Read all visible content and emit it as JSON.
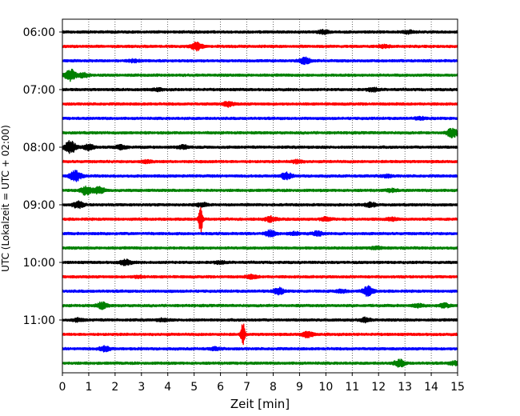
{
  "chart_data": {
    "type": "line",
    "title": "",
    "xlabel": "Zeit  [min]",
    "ylabel": "UTC (Lokalzeit = UTC + 02:00)",
    "xlim": [
      0,
      15
    ],
    "x_ticks": [
      "0",
      "1",
      "2",
      "3",
      "4",
      "5",
      "6",
      "7",
      "8",
      "9",
      "10",
      "11",
      "12",
      "13",
      "14",
      "15"
    ],
    "y_tick_labels": [
      "06:00",
      "07:00",
      "08:00",
      "09:00",
      "10:00",
      "11:00"
    ],
    "grid": "vertical dotted lines at each minute",
    "trace_colors_cycle": [
      "#000000",
      "#ff0000",
      "#0000ff",
      "#008000"
    ],
    "traces": [
      {
        "start": "06:00",
        "color": "#000000",
        "events": [
          {
            "t": 9.9,
            "amp": 0.55
          },
          {
            "t": 13.1,
            "amp": 0.4
          }
        ]
      },
      {
        "start": "06:15",
        "color": "#ff0000",
        "events": [
          {
            "t": 5.1,
            "amp": 1.1
          },
          {
            "t": 12.2,
            "amp": 0.35
          }
        ]
      },
      {
        "start": "06:30",
        "color": "#0000ff",
        "events": [
          {
            "t": 9.2,
            "amp": 0.9
          },
          {
            "t": 2.7,
            "amp": 0.35
          }
        ]
      },
      {
        "start": "06:45",
        "color": "#008000",
        "events": [
          {
            "t": 0.3,
            "amp": 1.7
          },
          {
            "t": 0.8,
            "amp": 0.6
          }
        ]
      },
      {
        "start": "07:00",
        "color": "#000000",
        "events": [
          {
            "t": 11.8,
            "amp": 0.5
          },
          {
            "t": 3.6,
            "amp": 0.3
          }
        ]
      },
      {
        "start": "07:15",
        "color": "#ff0000",
        "events": [
          {
            "t": 6.3,
            "amp": 0.65
          }
        ]
      },
      {
        "start": "07:30",
        "color": "#0000ff",
        "events": [
          {
            "t": 13.6,
            "amp": 0.35
          }
        ]
      },
      {
        "start": "07:45",
        "color": "#008000",
        "events": [
          {
            "t": 14.8,
            "amp": 1.3
          }
        ]
      },
      {
        "start": "08:00",
        "color": "#000000",
        "events": [
          {
            "t": 0.3,
            "amp": 1.9
          },
          {
            "t": 1.0,
            "amp": 0.9
          },
          {
            "t": 2.2,
            "amp": 0.7
          },
          {
            "t": 4.6,
            "amp": 0.5
          }
        ]
      },
      {
        "start": "08:15",
        "color": "#ff0000",
        "events": [
          {
            "t": 8.9,
            "amp": 0.45
          },
          {
            "t": 3.2,
            "amp": 0.3
          }
        ]
      },
      {
        "start": "08:30",
        "color": "#0000ff",
        "events": [
          {
            "t": 0.5,
            "amp": 1.6
          },
          {
            "t": 8.5,
            "amp": 0.95
          },
          {
            "t": 12.3,
            "amp": 0.35
          }
        ]
      },
      {
        "start": "08:45",
        "color": "#008000",
        "events": [
          {
            "t": 0.9,
            "amp": 1.3
          },
          {
            "t": 1.4,
            "amp": 1.0
          },
          {
            "t": 12.5,
            "amp": 0.4
          }
        ]
      },
      {
        "start": "09:00",
        "color": "#000000",
        "events": [
          {
            "t": 0.6,
            "amp": 0.9
          },
          {
            "t": 11.7,
            "amp": 0.6
          },
          {
            "t": 5.3,
            "amp": 0.5
          }
        ]
      },
      {
        "start": "09:15",
        "color": "#ff0000",
        "events": [
          {
            "t": 5.25,
            "amp": 4.6
          },
          {
            "t": 7.9,
            "amp": 0.7
          },
          {
            "t": 10.0,
            "amp": 0.5
          },
          {
            "t": 12.5,
            "amp": 0.4
          }
        ]
      },
      {
        "start": "09:30",
        "color": "#0000ff",
        "events": [
          {
            "t": 7.9,
            "amp": 0.9
          },
          {
            "t": 9.7,
            "amp": 0.6
          },
          {
            "t": 8.8,
            "amp": 0.4
          }
        ]
      },
      {
        "start": "09:45",
        "color": "#008000",
        "events": [
          {
            "t": 11.9,
            "amp": 0.35
          }
        ]
      },
      {
        "start": "10:00",
        "color": "#000000",
        "events": [
          {
            "t": 2.4,
            "amp": 0.8
          },
          {
            "t": 6.0,
            "amp": 0.35
          }
        ]
      },
      {
        "start": "10:15",
        "color": "#ff0000",
        "events": [
          {
            "t": 7.2,
            "amp": 0.5
          },
          {
            "t": 2.9,
            "amp": 0.3
          }
        ]
      },
      {
        "start": "10:30",
        "color": "#0000ff",
        "events": [
          {
            "t": 8.2,
            "amp": 0.9
          },
          {
            "t": 11.6,
            "amp": 1.4
          },
          {
            "t": 10.6,
            "amp": 0.4
          }
        ]
      },
      {
        "start": "10:45",
        "color": "#008000",
        "events": [
          {
            "t": 1.5,
            "amp": 0.9
          },
          {
            "t": 14.5,
            "amp": 0.55
          },
          {
            "t": 13.5,
            "amp": 0.4
          }
        ]
      },
      {
        "start": "11:00",
        "color": "#000000",
        "events": [
          {
            "t": 11.5,
            "amp": 0.6
          },
          {
            "t": 0.6,
            "amp": 0.4
          },
          {
            "t": 3.8,
            "amp": 0.35
          }
        ]
      },
      {
        "start": "11:15",
        "color": "#ff0000",
        "events": [
          {
            "t": 6.85,
            "amp": 3.8
          },
          {
            "t": 9.3,
            "amp": 0.8
          }
        ]
      },
      {
        "start": "11:30",
        "color": "#0000ff",
        "events": [
          {
            "t": 1.6,
            "amp": 0.7
          },
          {
            "t": 5.8,
            "amp": 0.35
          }
        ]
      },
      {
        "start": "11:45",
        "color": "#008000",
        "events": [
          {
            "t": 12.8,
            "amp": 1.0
          },
          {
            "t": 14.9,
            "amp": 0.5
          }
        ]
      }
    ]
  }
}
